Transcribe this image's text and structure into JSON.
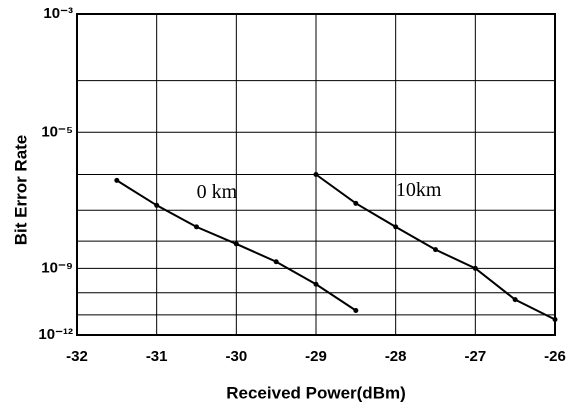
{
  "chart_data": {
    "type": "line",
    "xlabel": "Received Power(dBm)",
    "ylabel": "Bit Error Rate",
    "yscale": "loglog",
    "grid": true,
    "xlim": [
      -32,
      -26
    ],
    "xticks": [
      -32,
      -31,
      -30,
      -29,
      -28,
      -27,
      -26
    ],
    "ylim": [
      1e-12,
      0.001
    ],
    "yticks": [
      {
        "value": 0.001,
        "label": "10⁻³"
      },
      {
        "value": 0.0001
      },
      {
        "value": 1e-05,
        "label": "10⁻⁵"
      },
      {
        "value": 1e-06
      },
      {
        "value": 1e-07
      },
      {
        "value": 1e-08
      },
      {
        "value": 1e-09,
        "label": "10⁻⁹"
      },
      {
        "value": 1e-10
      },
      {
        "value": 1e-11
      },
      {
        "value": 1e-12,
        "label": "10⁻¹²"
      }
    ],
    "series": [
      {
        "name": "0 km",
        "color": "#000000",
        "x": [
          -31.5,
          -31,
          -30.5,
          -30,
          -29.5,
          -29,
          -28.5
        ],
        "values": [
          7e-07,
          1.4e-07,
          3e-08,
          8e-09,
          1.8e-09,
          2.3e-10,
          1.6e-11
        ]
      },
      {
        "name": "10km",
        "color": "#000000",
        "x": [
          -29,
          -28.5,
          -28,
          -27.5,
          -27,
          -26.5,
          -26
        ],
        "values": [
          1e-06,
          1.6e-07,
          3e-08,
          5e-09,
          1e-09,
          5e-11,
          6e-12
        ]
      }
    ]
  }
}
